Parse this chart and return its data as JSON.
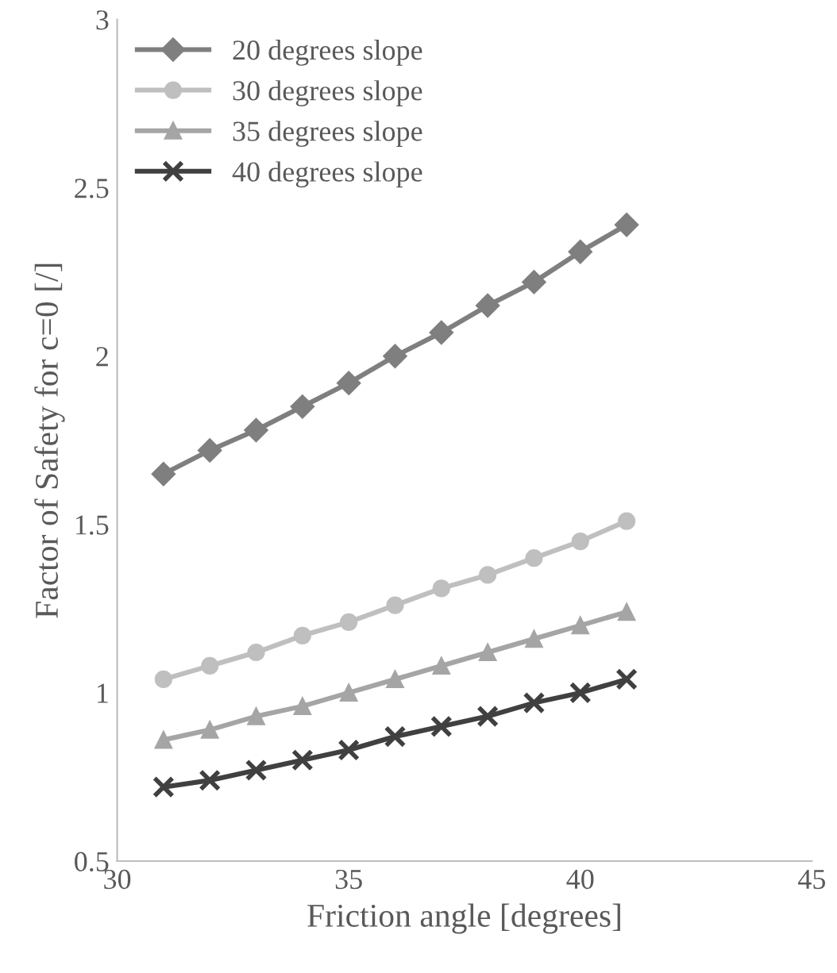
{
  "chart_data": {
    "type": "line",
    "xlabel": "Friction angle [degrees]",
    "ylabel": "Factor of Safety for c=0 [/]",
    "x": [
      31,
      32,
      33,
      34,
      35,
      36,
      37,
      38,
      39,
      40,
      41
    ],
    "series": [
      {
        "name": "20 degrees slope",
        "color": "#7f7f7f",
        "marker": "diamond",
        "values": [
          1.65,
          1.72,
          1.78,
          1.85,
          1.92,
          2.0,
          2.07,
          2.15,
          2.22,
          2.31,
          2.39
        ]
      },
      {
        "name": "30 degrees slope",
        "color": "#bfbfbf",
        "marker": "circle",
        "values": [
          1.04,
          1.08,
          1.12,
          1.17,
          1.21,
          1.26,
          1.31,
          1.35,
          1.4,
          1.45,
          1.51
        ]
      },
      {
        "name": "35 degrees slope",
        "color": "#a5a5a5",
        "marker": "triangle",
        "values": [
          0.86,
          0.89,
          0.93,
          0.96,
          1.0,
          1.04,
          1.08,
          1.12,
          1.16,
          1.2,
          1.24
        ]
      },
      {
        "name": "40 degrees slope",
        "color": "#404040",
        "marker": "cross",
        "values": [
          0.72,
          0.74,
          0.77,
          0.8,
          0.83,
          0.87,
          0.9,
          0.93,
          0.97,
          1.0,
          1.04
        ]
      }
    ],
    "xlim": [
      30,
      45
    ],
    "xticks": [
      30,
      35,
      40,
      45
    ],
    "ylim": [
      0.5,
      3
    ],
    "yticks": [
      0.5,
      1,
      {
        "value": 1.5,
        "label": "1.5"
      },
      2,
      {
        "value": 2.5,
        "label": "2.5"
      },
      3
    ],
    "grid": false,
    "legend": "top left",
    "line_style": "solid"
  }
}
